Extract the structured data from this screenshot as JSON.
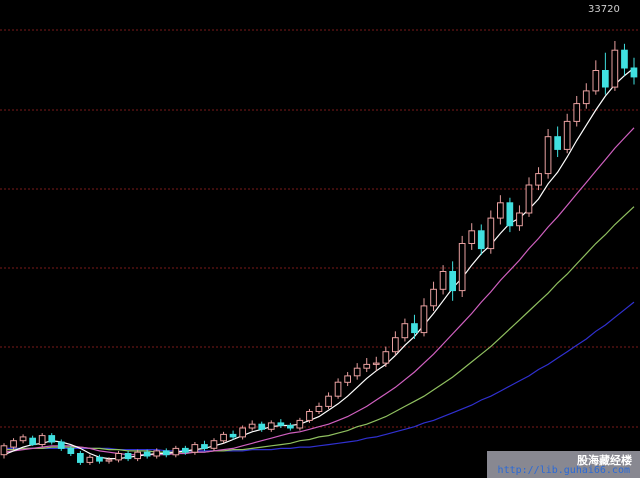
{
  "chart_data": {
    "type": "candlestick",
    "background": "#000000",
    "gridlines": "horizontal dashed",
    "peak_label": "33720",
    "ylim": [
      0,
      36000
    ],
    "colors": {
      "up": "#e8a0a0",
      "down": "#40e0e0",
      "ma_short": "#ffffff",
      "ma_mid": "#d060c0",
      "ma_long": "#90c060",
      "ma_longest": "#3030d0",
      "grid": "#7a1a1a"
    },
    "candles": [
      [
        1200,
        1900,
        900,
        2100
      ],
      [
        1800,
        2300,
        1600,
        2500
      ],
      [
        2300,
        2600,
        2100,
        2800
      ],
      [
        2500,
        2000,
        1900,
        2700
      ],
      [
        2000,
        2700,
        1800,
        2900
      ],
      [
        2700,
        2200,
        2000,
        2900
      ],
      [
        2200,
        1700,
        1500,
        2400
      ],
      [
        1700,
        1300,
        1100,
        1900
      ],
      [
        1300,
        600,
        400,
        1500
      ],
      [
        600,
        1000,
        400,
        1200
      ],
      [
        1000,
        700,
        500,
        1200
      ],
      [
        700,
        800,
        500,
        1000
      ],
      [
        800,
        1300,
        600,
        1500
      ],
      [
        1300,
        900,
        700,
        1500
      ],
      [
        900,
        1400,
        700,
        1600
      ],
      [
        1400,
        1100,
        900,
        1600
      ],
      [
        1100,
        1500,
        900,
        1700
      ],
      [
        1500,
        1200,
        1000,
        1700
      ],
      [
        1200,
        1700,
        1000,
        1900
      ],
      [
        1700,
        1400,
        1200,
        1900
      ],
      [
        1400,
        2000,
        1200,
        2200
      ],
      [
        2000,
        1700,
        1500,
        2300
      ],
      [
        1700,
        2300,
        1500,
        2500
      ],
      [
        2300,
        2800,
        2100,
        3000
      ],
      [
        2800,
        2600,
        2400,
        3100
      ],
      [
        2600,
        3300,
        2400,
        3500
      ],
      [
        3300,
        3600,
        3100,
        3900
      ],
      [
        3600,
        3200,
        3000,
        3800
      ],
      [
        3200,
        3700,
        3000,
        3900
      ],
      [
        3700,
        3500,
        3300,
        4000
      ],
      [
        3500,
        3300,
        3100,
        3700
      ],
      [
        3300,
        3900,
        3100,
        4100
      ],
      [
        3900,
        4600,
        3700,
        4800
      ],
      [
        4600,
        5000,
        4400,
        5300
      ],
      [
        5000,
        5800,
        4800,
        6100
      ],
      [
        5800,
        6900,
        5600,
        7200
      ],
      [
        6900,
        7400,
        6600,
        7700
      ],
      [
        7400,
        8000,
        7100,
        8400
      ],
      [
        8000,
        8300,
        7700,
        8800
      ],
      [
        8300,
        8400,
        7800,
        8900
      ],
      [
        8400,
        9300,
        8100,
        9700
      ],
      [
        9300,
        10400,
        9000,
        10900
      ],
      [
        10400,
        11500,
        10100,
        11900
      ],
      [
        11500,
        10800,
        10300,
        12200
      ],
      [
        10800,
        12900,
        10500,
        13500
      ],
      [
        12900,
        14200,
        12500,
        14800
      ],
      [
        14200,
        15600,
        13800,
        16100
      ],
      [
        15600,
        14100,
        13300,
        16400
      ],
      [
        14100,
        17800,
        13600,
        18400
      ],
      [
        17800,
        18800,
        17300,
        19400
      ],
      [
        18800,
        17400,
        16900,
        19300
      ],
      [
        17400,
        19800,
        17000,
        20400
      ],
      [
        19800,
        21000,
        19300,
        21600
      ],
      [
        21000,
        19200,
        18700,
        21400
      ],
      [
        19200,
        20200,
        18800,
        20800
      ],
      [
        20200,
        22400,
        19900,
        23000
      ],
      [
        22400,
        23300,
        22000,
        23800
      ],
      [
        23300,
        26200,
        22900,
        26800
      ],
      [
        26200,
        25200,
        24600,
        27000
      ],
      [
        25200,
        27400,
        24900,
        28000
      ],
      [
        27400,
        28800,
        27000,
        29400
      ],
      [
        28800,
        29800,
        28400,
        30400
      ],
      [
        29800,
        31400,
        29500,
        32200
      ],
      [
        31400,
        30100,
        29500,
        32800
      ],
      [
        30100,
        33000,
        29800,
        33720
      ],
      [
        33000,
        31600,
        31000,
        33500
      ],
      [
        31600,
        30900,
        30300,
        32400
      ]
    ],
    "ma_short": [
      1200,
      1500,
      1800,
      2000,
      2100,
      2300,
      2200,
      2000,
      1700,
      1300,
      1000,
      900,
      900,
      1000,
      1100,
      1200,
      1300,
      1300,
      1400,
      1500,
      1600,
      1700,
      1900,
      2100,
      2400,
      2700,
      3000,
      3200,
      3400,
      3500,
      3500,
      3600,
      3900,
      4200,
      4700,
      5200,
      5800,
      6500,
      7200,
      7800,
      8300,
      9000,
      9800,
      10500,
      11400,
      12300,
      13300,
      14300,
      15100,
      16100,
      17000,
      17700,
      18600,
      19400,
      19800,
      20500,
      21300,
      22500,
      23400,
      24600,
      25900,
      27100,
      28300,
      29400,
      30300,
      31000,
      31600
    ],
    "ma_mid": [
      1400,
      1500,
      1600,
      1700,
      1800,
      1900,
      1900,
      1900,
      1800,
      1700,
      1500,
      1400,
      1300,
      1200,
      1200,
      1200,
      1200,
      1200,
      1300,
      1300,
      1400,
      1400,
      1500,
      1600,
      1700,
      1900,
      2100,
      2300,
      2500,
      2700,
      2900,
      3000,
      3200,
      3400,
      3600,
      3900,
      4200,
      4600,
      5000,
      5500,
      6000,
      6500,
      7100,
      7700,
      8400,
      9100,
      9900,
      10700,
      11500,
      12300,
      13200,
      14000,
      14900,
      15700,
      16500,
      17400,
      18200,
      19100,
      19900,
      20800,
      21700,
      22600,
      23500,
      24400,
      25300,
      26100,
      26900
    ],
    "ma_long": [
      1600,
      1600,
      1700,
      1700,
      1700,
      1800,
      1800,
      1800,
      1800,
      1700,
      1700,
      1600,
      1600,
      1500,
      1500,
      1500,
      1400,
      1400,
      1400,
      1400,
      1400,
      1400,
      1500,
      1500,
      1600,
      1600,
      1700,
      1800,
      1900,
      2000,
      2100,
      2300,
      2400,
      2600,
      2700,
      2900,
      3100,
      3400,
      3600,
      3900,
      4200,
      4600,
      5000,
      5400,
      5800,
      6300,
      6800,
      7300,
      7900,
      8500,
      9100,
      9700,
      10400,
      11100,
      11800,
      12500,
      13200,
      13900,
      14700,
      15400,
      16200,
      17000,
      17800,
      18500,
      19300,
      20000,
      20700
    ],
    "ma_longest": [
      1700,
      1700,
      1700,
      1700,
      1700,
      1700,
      1700,
      1700,
      1700,
      1700,
      1700,
      1700,
      1600,
      1600,
      1600,
      1600,
      1600,
      1500,
      1500,
      1500,
      1500,
      1500,
      1500,
      1500,
      1500,
      1500,
      1600,
      1600,
      1600,
      1700,
      1700,
      1800,
      1800,
      1900,
      2000,
      2100,
      2200,
      2300,
      2500,
      2600,
      2800,
      3000,
      3200,
      3400,
      3700,
      3900,
      4200,
      4500,
      4800,
      5100,
      5500,
      5800,
      6200,
      6600,
      7000,
      7400,
      7900,
      8300,
      8800,
      9300,
      9800,
      10300,
      10900,
      11400,
      12000,
      12600,
      13200
    ]
  },
  "watermark": {
    "title": "股海藏经楼",
    "url": "http://lib.guhai66.com"
  }
}
